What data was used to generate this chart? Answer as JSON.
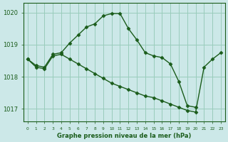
{
  "title": "Graphe pression niveau de la mer (hPa)",
  "bg_color": "#cce8e8",
  "grid_color": "#99ccbb",
  "line_color": "#1a5c1a",
  "marker_color": "#1a5c1a",
  "xlim": [
    -0.5,
    23.5
  ],
  "ylim": [
    1016.6,
    1020.3
  ],
  "yticks": [
    1017,
    1018,
    1019,
    1020
  ],
  "ytick_labels": [
    "1017",
    "1018",
    "1019",
    "1020"
  ],
  "xtick_labels": [
    "0",
    "1",
    "2",
    "3",
    "4",
    "5",
    "6",
    "7",
    "8",
    "9",
    "10",
    "11",
    "12",
    "13",
    "14",
    "15",
    "16",
    "17",
    "18",
    "19",
    "20",
    "21",
    "22",
    "23"
  ],
  "series1_x": [
    0,
    1,
    2,
    3,
    4,
    5,
    6,
    7,
    8,
    9,
    10,
    11,
    12,
    13,
    14,
    15,
    16,
    17,
    18,
    19,
    20
  ],
  "series1_y": [
    1018.55,
    1018.35,
    1018.3,
    1018.7,
    1018.75,
    1019.05,
    1019.3,
    1019.55,
    1019.65,
    1019.9,
    1019.97,
    1019.97,
    1019.5,
    1019.15,
    1018.75,
    1018.65,
    1018.6,
    1018.4,
    1017.85,
    1017.1,
    1017.05
  ],
  "series2_x": [
    0,
    1,
    2,
    3,
    4,
    5,
    6,
    7,
    8,
    9,
    10,
    11,
    12,
    13,
    14,
    15,
    16,
    17,
    18,
    19,
    20,
    21,
    22,
    23
  ],
  "series2_y": [
    1018.55,
    1018.3,
    1018.25,
    1018.65,
    1018.7,
    1018.55,
    1018.4,
    1018.25,
    1018.1,
    1017.95,
    1017.8,
    1017.7,
    1017.6,
    1017.5,
    1017.4,
    1017.35,
    1017.25,
    1017.15,
    1017.05,
    1016.95,
    1016.9,
    1018.3,
    1018.55,
    1018.75
  ]
}
